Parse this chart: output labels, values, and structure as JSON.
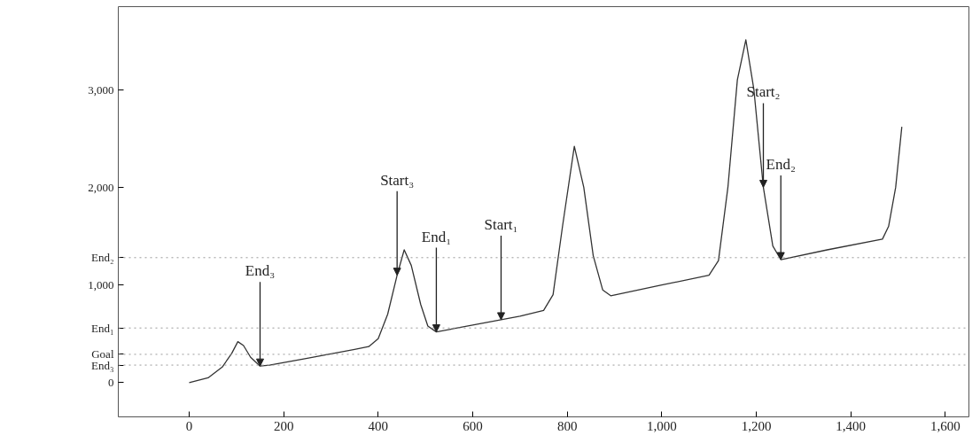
{
  "chart_data": {
    "type": "line",
    "marker": "none",
    "line_style": "solid",
    "grid": false,
    "x": [
      0,
      40,
      70,
      90,
      103,
      115,
      130,
      150,
      170,
      250,
      350,
      380,
      400,
      420,
      440,
      455,
      470,
      490,
      505,
      523,
      600,
      700,
      750,
      770,
      790,
      815,
      835,
      855,
      875,
      892,
      1000,
      1100,
      1120,
      1140,
      1160,
      1178,
      1195,
      1215,
      1235,
      1252,
      1350,
      1467,
      1480,
      1495,
      1508
    ],
    "series": [
      {
        "color": "#333333",
        "values": [
          0,
          50,
          160,
          300,
          420,
          380,
          260,
          170,
          180,
          250,
          340,
          370,
          450,
          700,
          1100,
          1360,
          1200,
          800,
          580,
          520,
          590,
          680,
          740,
          900,
          1600,
          2420,
          2000,
          1300,
          950,
          890,
          1000,
          1100,
          1250,
          2000,
          3100,
          3510,
          3000,
          2000,
          1400,
          1260,
          1360,
          1470,
          1600,
          2000,
          2620
        ]
      }
    ],
    "xlim": [
      -150,
      1650
    ],
    "ylim": [
      -350,
      3850
    ],
    "xticks": [
      0,
      200,
      400,
      600,
      800,
      {
        "value": 1000,
        "label": "1,000"
      },
      {
        "value": 1200,
        "label": "1,200"
      },
      {
        "value": 1400,
        "label": "1,400"
      },
      {
        "value": 1600,
        "label": "1,600"
      }
    ],
    "yticks": [
      0,
      {
        "value": 1000,
        "label": "1,000"
      },
      {
        "value": 2000,
        "label": "2,000"
      },
      {
        "value": 3000,
        "label": "3,000"
      }
    ],
    "ref_lines": [
      {
        "axis": "y",
        "value": 1280,
        "label": "End₂",
        "color": "#999999",
        "line_style": "dotted"
      },
      {
        "axis": "y",
        "value": 560,
        "label": "End₁",
        "color": "#999999",
        "line_style": "dotted"
      },
      {
        "axis": "y",
        "value": 290,
        "label": "Goal",
        "color": "#999999",
        "line_style": "dotted"
      },
      {
        "axis": "y",
        "value": 180,
        "label": "End₃",
        "color": "#999999",
        "line_style": "dotted"
      }
    ],
    "annotations": [
      {
        "text": "End₃",
        "x": 150,
        "y": 170
      },
      {
        "text": "Start₃",
        "x": 440,
        "y": 1100
      },
      {
        "text": "End₁",
        "x": 523,
        "y": 520
      },
      {
        "text": "Start₁",
        "x": 660,
        "y": 644
      },
      {
        "text": "Start₂",
        "x": 1215,
        "y": 2000
      },
      {
        "text": "End₂",
        "x": 1252,
        "y": 1260
      }
    ]
  }
}
